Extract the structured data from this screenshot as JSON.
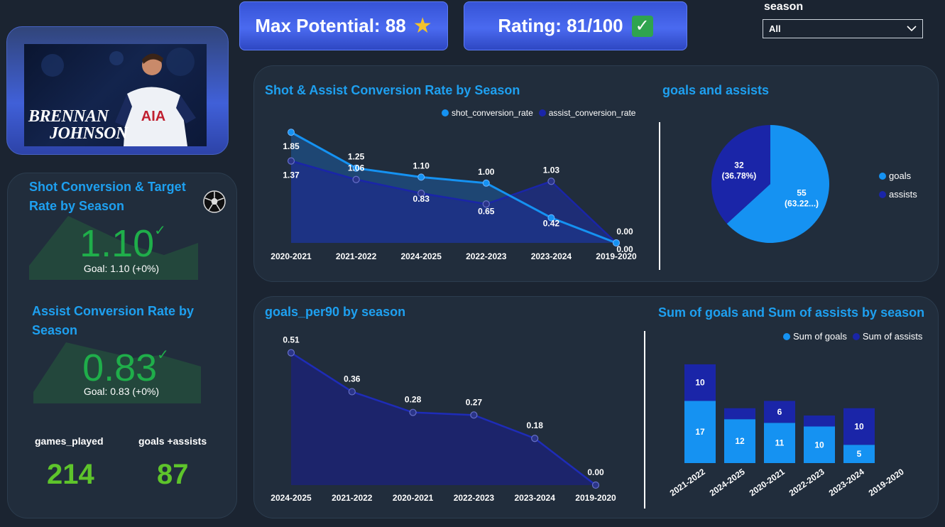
{
  "header": {
    "max_potential_label": "Max Potential: 88",
    "rating_label": "Rating: 81/100",
    "star_icon": "★",
    "check_icon": "✓"
  },
  "slicer": {
    "label": "season",
    "value": "All"
  },
  "player": {
    "name_line1": "BRENNAN",
    "name_line2": "JOHNSON",
    "sponsor": "AIA"
  },
  "shot_card": {
    "title": "Shot Conversion & Target Rate by Season",
    "value": "1.10",
    "goal": "Goal: 1.10 (+0%)"
  },
  "assist_card": {
    "title": "Assist Conversion Rate by Season",
    "value": "0.83",
    "goal": "Goal: 0.83 (+0%)"
  },
  "stats": {
    "games_label": "games_played",
    "games_value": "214",
    "ga_label": "goals +assists",
    "ga_value": "87"
  },
  "colors": {
    "light_blue": "#1592f2",
    "dark_blue": "#1a25a8",
    "green": "#1fae4a",
    "title_blue": "#1ea0f0"
  },
  "chart_data": [
    {
      "type": "area",
      "title": "Shot & Assist Conversion Rate by Season",
      "categories": [
        "2020-2021",
        "2021-2022",
        "2024-2025",
        "2022-2023",
        "2023-2024",
        "2019-2020"
      ],
      "series": [
        {
          "name": "shot_conversion_rate",
          "values": [
            1.85,
            1.25,
            1.1,
            1.0,
            0.42,
            0.0
          ],
          "labels": [
            "1.85",
            "1.25",
            "1.10",
            "1.00",
            "0.42",
            "0.00"
          ]
        },
        {
          "name": "assist_conversion_rate",
          "values": [
            1.37,
            1.06,
            0.83,
            0.65,
            1.03,
            0.0
          ],
          "labels": [
            "1.37",
            "1.06",
            "0.83",
            "0.65",
            "1.03",
            "0.00"
          ]
        }
      ],
      "ylim": [
        0,
        1.9
      ],
      "legend": "top-right"
    },
    {
      "type": "pie",
      "title": "goals and assists",
      "slices": [
        {
          "name": "goals",
          "value": 55,
          "label": "55",
          "pct": "(63.22...)"
        },
        {
          "name": "assists",
          "value": 32,
          "label": "32",
          "pct": "(36.78%)"
        }
      ],
      "legend": "right"
    },
    {
      "type": "area",
      "title": "goals_per90 by season",
      "categories": [
        "2024-2025",
        "2021-2022",
        "2020-2021",
        "2022-2023",
        "2023-2024",
        "2019-2020"
      ],
      "series": [
        {
          "values": [
            0.51,
            0.36,
            0.28,
            0.27,
            0.18,
            0.0
          ],
          "labels": [
            "0.51",
            "0.36",
            "0.28",
            "0.27",
            "0.18",
            "0.00"
          ]
        }
      ],
      "ylim": [
        0,
        0.55
      ]
    },
    {
      "type": "bar",
      "title": "Sum of goals and Sum of assists by season",
      "stacked": true,
      "categories": [
        "2021-2022",
        "2024-2025",
        "2020-2021",
        "2022-2023",
        "2023-2024",
        "2019-2020"
      ],
      "series": [
        {
          "name": "Sum of goals",
          "values": [
            17,
            12,
            11,
            10,
            5,
            0
          ],
          "labels": [
            "17",
            "12",
            "11",
            "10",
            "5",
            ""
          ]
        },
        {
          "name": "Sum of assists",
          "values": [
            10,
            3,
            6,
            3,
            10,
            0
          ],
          "labels": [
            "10",
            "",
            "6",
            "",
            "10",
            ""
          ]
        }
      ],
      "ylim": [
        0,
        28
      ],
      "legend": "top-right"
    }
  ]
}
